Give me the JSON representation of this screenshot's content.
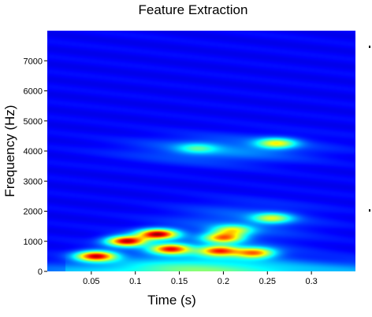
{
  "chart_data": {
    "type": "heatmap",
    "title": "Feature Extraction",
    "xlabel": "Time (s)",
    "ylabel": "Frequency (Hz)",
    "xlim": [
      0.0,
      0.35
    ],
    "ylim": [
      0,
      8000
    ],
    "xticks": [
      0.05,
      0.1,
      0.15,
      0.2,
      0.25,
      0.3
    ],
    "xtick_labels": [
      "0.05",
      "0.1",
      "0.15",
      "0.2",
      "0.25",
      "0.3"
    ],
    "yticks": [
      0,
      1000,
      2000,
      3000,
      4000,
      5000,
      6000,
      7000
    ],
    "ytick_labels": [
      "0",
      "1000",
      "2000",
      "3000",
      "4000",
      "5000",
      "6000",
      "7000"
    ],
    "colormap": "jet",
    "background_color": "#03038f",
    "grid": false,
    "energy_regions": [
      {
        "t": 0.055,
        "f": 520,
        "intensity": 0.95
      },
      {
        "t": 0.09,
        "f": 1020,
        "intensity": 1.0
      },
      {
        "t": 0.125,
        "f": 1250,
        "intensity": 1.0
      },
      {
        "t": 0.14,
        "f": 760,
        "intensity": 0.85
      },
      {
        "t": 0.195,
        "f": 700,
        "intensity": 0.8
      },
      {
        "t": 0.2,
        "f": 1130,
        "intensity": 0.75
      },
      {
        "t": 0.235,
        "f": 630,
        "intensity": 0.75
      },
      {
        "t": 0.255,
        "f": 1780,
        "intensity": 0.55
      },
      {
        "t": 0.21,
        "f": 1380,
        "intensity": 0.55
      },
      {
        "t": 0.26,
        "f": 4270,
        "intensity": 0.6
      },
      {
        "t": 0.17,
        "f": 4100,
        "intensity": 0.35
      }
    ]
  }
}
